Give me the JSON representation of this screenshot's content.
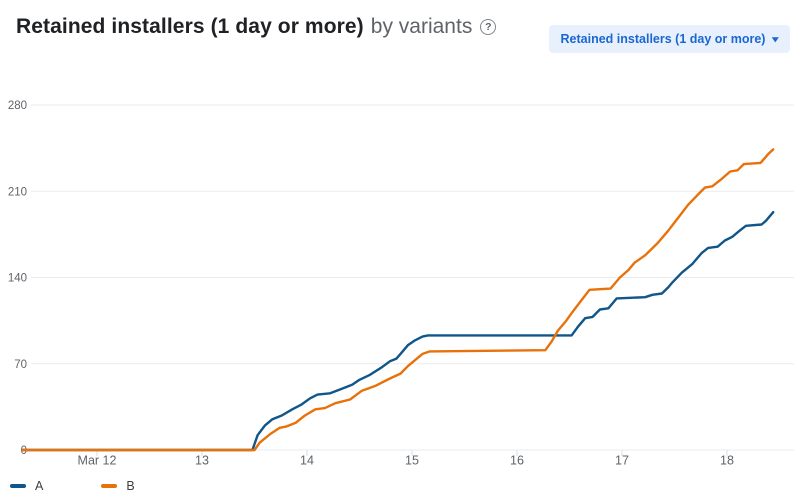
{
  "header": {
    "title": "Retained installers (1 day or more)",
    "subtitle": "by variants"
  },
  "icons": {
    "help_glyph": "?",
    "dropdown_caret": "▾"
  },
  "toolbar": {
    "metric_dropdown_label": "Retained installers (1 day or more)"
  },
  "colors": {
    "series_a": "#10568a",
    "series_b": "#e8710a",
    "grid": "#e9ebee",
    "tick": "#dadce0",
    "axis_text": "#5f6368",
    "dropdown_bg": "#e8f0fe",
    "dropdown_text": "#1967d2"
  },
  "legend": {
    "items": [
      {
        "label": "A",
        "color": "#10568a"
      },
      {
        "label": "B",
        "color": "#e8710a"
      }
    ]
  },
  "chart_data": {
    "type": "line",
    "title": "Retained installers (1 day or more) by variants",
    "xlabel": "",
    "ylabel": "",
    "grid": "horizontal-only",
    "legend_position": "bottom-left",
    "x_axis": {
      "unit": "date (March, fractional days)",
      "labels": [
        "Mar 12",
        "13",
        "14",
        "15",
        "16",
        "17",
        "18"
      ],
      "days": [
        12,
        13,
        14,
        15,
        16,
        17,
        18
      ],
      "range_days": [
        11.27,
        18.47
      ]
    },
    "y_axis": {
      "ticks": [
        0,
        70,
        140,
        210,
        280
      ],
      "range": [
        0,
        280
      ]
    },
    "series": [
      {
        "name": "A",
        "color": "#10568a",
        "points": [
          [
            11.29,
            0
          ],
          [
            13.48,
            0
          ],
          [
            13.53,
            12
          ],
          [
            13.6,
            20
          ],
          [
            13.67,
            25
          ],
          [
            13.76,
            28
          ],
          [
            13.86,
            33
          ],
          [
            13.95,
            37
          ],
          [
            14.03,
            42
          ],
          [
            14.1,
            45
          ],
          [
            14.22,
            46
          ],
          [
            14.31,
            49
          ],
          [
            14.43,
            53
          ],
          [
            14.5,
            57
          ],
          [
            14.6,
            61
          ],
          [
            14.71,
            67
          ],
          [
            14.79,
            72
          ],
          [
            14.85,
            74
          ],
          [
            14.89,
            78
          ],
          [
            14.96,
            85
          ],
          [
            15.03,
            89
          ],
          [
            15.1,
            92
          ],
          [
            15.15,
            93
          ],
          [
            16.52,
            93
          ],
          [
            16.58,
            100
          ],
          [
            16.65,
            107
          ],
          [
            16.72,
            108
          ],
          [
            16.79,
            114
          ],
          [
            16.87,
            115
          ],
          [
            16.95,
            123
          ],
          [
            17.22,
            124
          ],
          [
            17.29,
            126
          ],
          [
            17.38,
            127
          ],
          [
            17.44,
            132
          ],
          [
            17.48,
            136
          ],
          [
            17.57,
            144
          ],
          [
            17.67,
            151
          ],
          [
            17.76,
            160
          ],
          [
            17.82,
            164
          ],
          [
            17.91,
            165
          ],
          [
            17.98,
            170
          ],
          [
            18.05,
            173
          ],
          [
            18.12,
            178
          ],
          [
            18.18,
            182
          ],
          [
            18.33,
            183
          ],
          [
            18.37,
            186
          ],
          [
            18.44,
            193
          ]
        ]
      },
      {
        "name": "B",
        "color": "#e8710a",
        "points": [
          [
            11.29,
            0
          ],
          [
            13.5,
            0
          ],
          [
            13.55,
            6
          ],
          [
            13.65,
            13
          ],
          [
            13.74,
            18
          ],
          [
            13.8,
            19
          ],
          [
            13.89,
            22
          ],
          [
            13.98,
            28
          ],
          [
            14.08,
            33
          ],
          [
            14.17,
            34
          ],
          [
            14.27,
            38
          ],
          [
            14.41,
            41
          ],
          [
            14.52,
            48
          ],
          [
            14.65,
            52
          ],
          [
            14.79,
            58
          ],
          [
            14.89,
            62
          ],
          [
            14.96,
            68
          ],
          [
            15.03,
            73
          ],
          [
            15.1,
            78
          ],
          [
            15.17,
            80
          ],
          [
            16.27,
            81
          ],
          [
            16.33,
            88
          ],
          [
            16.39,
            97
          ],
          [
            16.46,
            104
          ],
          [
            16.52,
            111
          ],
          [
            16.6,
            120
          ],
          [
            16.69,
            130
          ],
          [
            16.89,
            131
          ],
          [
            16.98,
            140
          ],
          [
            17.06,
            146
          ],
          [
            17.12,
            152
          ],
          [
            17.22,
            158
          ],
          [
            17.34,
            168
          ],
          [
            17.44,
            178
          ],
          [
            17.53,
            188
          ],
          [
            17.63,
            199
          ],
          [
            17.72,
            207
          ],
          [
            17.79,
            213
          ],
          [
            17.86,
            214
          ],
          [
            17.95,
            220
          ],
          [
            18.03,
            226
          ],
          [
            18.1,
            227
          ],
          [
            18.16,
            232
          ],
          [
            18.32,
            233
          ],
          [
            18.39,
            240
          ],
          [
            18.44,
            244
          ]
        ]
      }
    ]
  }
}
